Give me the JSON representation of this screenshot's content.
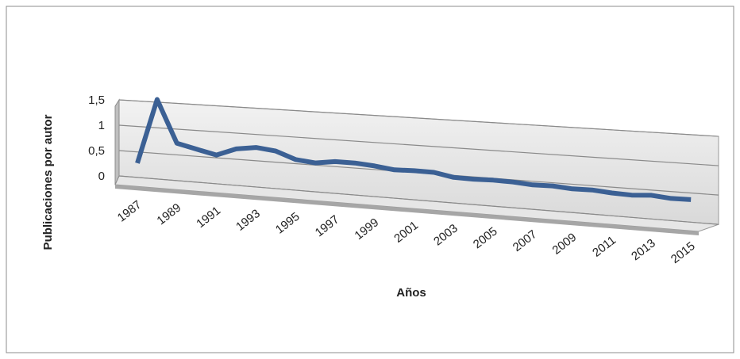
{
  "chart_data": {
    "type": "line",
    "x_label": "Años",
    "y_label": "Publicaciones por autor",
    "categories": [
      1987,
      null,
      1989,
      null,
      1991,
      null,
      1993,
      null,
      1995,
      null,
      1997,
      null,
      1999,
      null,
      2001,
      null,
      2003,
      null,
      2005,
      null,
      2007,
      null,
      2009,
      null,
      2011,
      null,
      2013,
      null,
      2015
    ],
    "values": [
      0.28,
      1.5,
      0.68,
      0.58,
      0.49,
      0.6,
      0.63,
      0.58,
      0.46,
      0.42,
      0.45,
      0.44,
      0.41,
      0.37,
      0.37,
      0.36,
      0.31,
      0.3,
      0.3,
      0.29,
      0.27,
      0.27,
      0.25,
      0.25,
      0.23,
      0.22,
      0.23,
      0.21,
      0.21
    ],
    "color": "#3b6094",
    "ylim": [
      0,
      1.5
    ],
    "yticks": [
      0,
      {
        "value": 0.5,
        "label": "0,5"
      },
      1,
      {
        "value": 1.5,
        "label": "1,5"
      }
    ],
    "grid": true
  }
}
